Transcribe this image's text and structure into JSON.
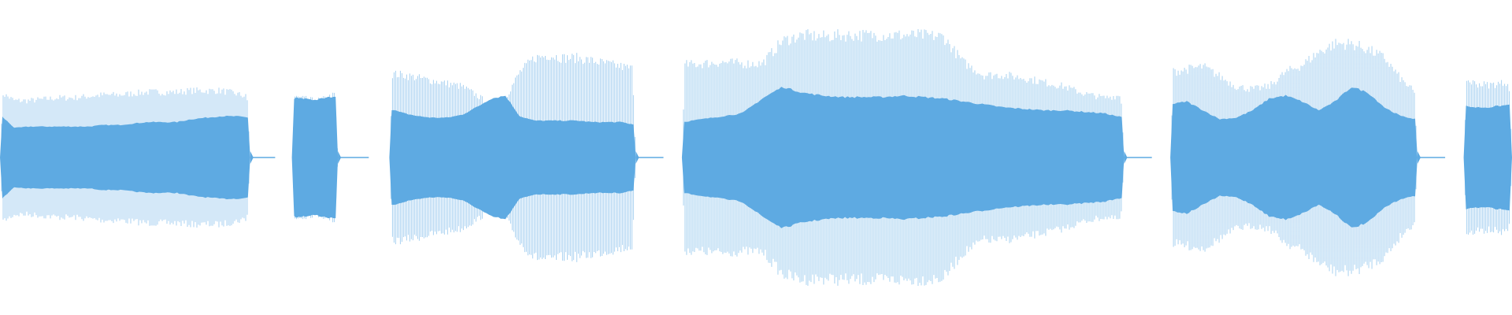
{
  "waveform": {
    "colors": {
      "background": "#ffffff",
      "peak": "#a9d2f1",
      "rms": "#5eaae2",
      "silence_line": "#5eaae2"
    },
    "segments": [
      {
        "label": "segment-1",
        "start": 0.0,
        "end": 0.1655,
        "peak_levels": [
          0.46,
          0.4,
          0.4,
          0.41,
          0.42,
          0.42,
          0.43,
          0.44,
          0.44,
          0.45,
          0.46,
          0.46,
          0.46,
          0.47,
          0.47,
          0.47,
          0.45,
          0.42
        ],
        "rms_levels": [
          0.29,
          0.2,
          0.21,
          0.21,
          0.21,
          0.21,
          0.21,
          0.22,
          0.22,
          0.23,
          0.24,
          0.24,
          0.24,
          0.26,
          0.27,
          0.28,
          0.28,
          0.27
        ]
      },
      {
        "label": "segment-2",
        "start": 0.193,
        "end": 0.2235,
        "peak_levels": [
          0.43,
          0.42,
          0.41,
          0.4,
          0.41,
          0.43,
          0.45
        ],
        "rms_levels": [
          0.41,
          0.4,
          0.4,
          0.39,
          0.4,
          0.41,
          0.42
        ]
      },
      {
        "label": "segment-3",
        "start": 0.2575,
        "end": 0.4205,
        "peak_levels": [
          0.59,
          0.58,
          0.56,
          0.54,
          0.52,
          0.5,
          0.44,
          0.37,
          0.42,
          0.6,
          0.7,
          0.72,
          0.7,
          0.7,
          0.68,
          0.66,
          0.64,
          0.62
        ],
        "rms_levels": [
          0.33,
          0.3,
          0.28,
          0.27,
          0.27,
          0.29,
          0.34,
          0.4,
          0.42,
          0.28,
          0.25,
          0.25,
          0.25,
          0.25,
          0.24,
          0.24,
          0.24,
          0.22
        ]
      },
      {
        "label": "segment-4",
        "start": 0.451,
        "end": 0.7435,
        "peak_levels": [
          0.65,
          0.66,
          0.67,
          0.66,
          0.66,
          0.82,
          0.86,
          0.85,
          0.86,
          0.86,
          0.86,
          0.86,
          0.86,
          0.85,
          0.67,
          0.58,
          0.58,
          0.56,
          0.53,
          0.5,
          0.45,
          0.42,
          0.44
        ],
        "rms_levels": [
          0.24,
          0.26,
          0.28,
          0.3,
          0.4,
          0.48,
          0.44,
          0.42,
          0.41,
          0.41,
          0.41,
          0.42,
          0.41,
          0.4,
          0.38,
          0.36,
          0.34,
          0.33,
          0.32,
          0.32,
          0.31,
          0.3,
          0.27
        ]
      },
      {
        "label": "segment-5",
        "start": 0.774,
        "end": 0.9375,
        "peak_levels": [
          0.6,
          0.62,
          0.64,
          0.57,
          0.5,
          0.48,
          0.5,
          0.6,
          0.65,
          0.74,
          0.8,
          0.8,
          0.76,
          0.7,
          0.55,
          0.44
        ],
        "rms_levels": [
          0.36,
          0.38,
          0.32,
          0.26,
          0.27,
          0.32,
          0.4,
          0.42,
          0.38,
          0.32,
          0.38,
          0.48,
          0.44,
          0.34,
          0.28,
          0.26
        ]
      },
      {
        "label": "segment-6",
        "start": 0.968,
        "end": 1.0,
        "peak_levels": [
          0.55,
          0.52,
          0.51,
          0.52,
          0.54
        ],
        "rms_levels": [
          0.35,
          0.34,
          0.34,
          0.35,
          0.36
        ]
      }
    ]
  }
}
